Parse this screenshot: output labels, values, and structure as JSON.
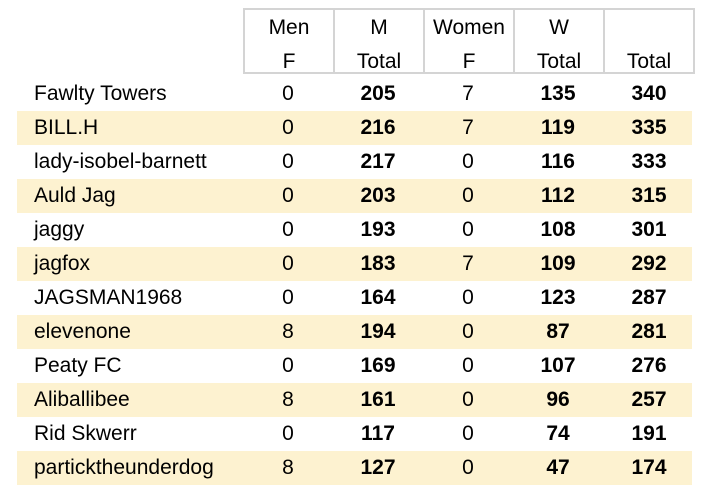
{
  "headers": {
    "men_f": [
      "Men",
      "F"
    ],
    "m_total": [
      "M",
      "Total"
    ],
    "women_f": [
      "Women",
      "F"
    ],
    "w_total": [
      "W",
      "Total"
    ],
    "total": "Total"
  },
  "rows": [
    {
      "name": "Fawlty Towers",
      "men_f": "0",
      "m_total": "205",
      "women_f": "7",
      "w_total": "135",
      "total": "340"
    },
    {
      "name": "BILL.H",
      "men_f": "0",
      "m_total": "216",
      "women_f": "7",
      "w_total": "119",
      "total": "335"
    },
    {
      "name": "lady-isobel-barnett",
      "men_f": "0",
      "m_total": "217",
      "women_f": "0",
      "w_total": "116",
      "total": "333"
    },
    {
      "name": "Auld Jag",
      "men_f": "0",
      "m_total": "203",
      "women_f": "0",
      "w_total": "112",
      "total": "315"
    },
    {
      "name": "jaggy",
      "men_f": "0",
      "m_total": "193",
      "women_f": "0",
      "w_total": "108",
      "total": "301"
    },
    {
      "name": "jagfox",
      "men_f": "0",
      "m_total": "183",
      "women_f": "7",
      "w_total": "109",
      "total": "292"
    },
    {
      "name": "JAGSMAN1968",
      "men_f": "0",
      "m_total": "164",
      "women_f": "0",
      "w_total": "123",
      "total": "287"
    },
    {
      "name": "elevenone",
      "men_f": "8",
      "m_total": "194",
      "women_f": "0",
      "w_total": "87",
      "total": "281"
    },
    {
      "name": "Peaty FC",
      "men_f": "0",
      "m_total": "169",
      "women_f": "0",
      "w_total": "107",
      "total": "276"
    },
    {
      "name": "Aliballibee",
      "men_f": "8",
      "m_total": "161",
      "women_f": "0",
      "w_total": "96",
      "total": "257"
    },
    {
      "name": "Rid Skwerr",
      "men_f": "0",
      "m_total": "117",
      "women_f": "0",
      "w_total": "74",
      "total": "191"
    },
    {
      "name": "particktheunderdog",
      "men_f": "8",
      "m_total": "127",
      "women_f": "0",
      "w_total": "47",
      "total": "174"
    }
  ],
  "colors": {
    "row_alt": "#fdf2d0",
    "grid": "#d4d4d4"
  }
}
